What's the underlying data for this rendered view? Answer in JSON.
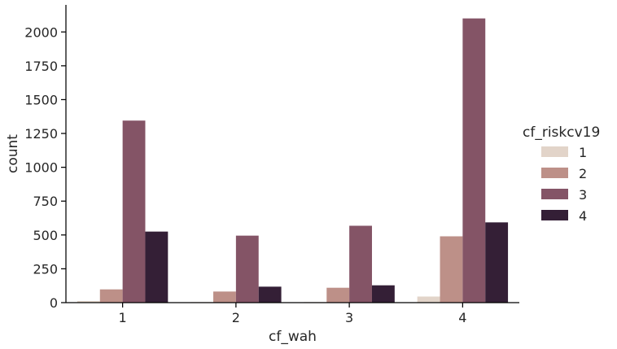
{
  "chart_data": {
    "type": "bar",
    "xlabel": "cf_wah",
    "ylabel": "count",
    "categories": [
      "1",
      "2",
      "3",
      "4"
    ],
    "ylim": [
      0,
      2200
    ],
    "yticks": [
      0,
      250,
      500,
      750,
      1000,
      1250,
      1500,
      1750,
      2000
    ],
    "ytick_labels": [
      "0",
      "250",
      "500",
      "750",
      "1000",
      "1250",
      "1500",
      "1750",
      "2000"
    ],
    "grid": false,
    "legend": {
      "title": "cf_riskcv19",
      "placement": "right"
    },
    "series": [
      {
        "name": "1",
        "color": "#e2d4c9",
        "values": [
          12,
          4,
          4,
          45
        ]
      },
      {
        "name": "2",
        "color": "#bd9088",
        "values": [
          98,
          82,
          110,
          490
        ]
      },
      {
        "name": "3",
        "color": "#845466",
        "values": [
          1345,
          495,
          568,
          2100
        ]
      },
      {
        "name": "4",
        "color": "#341f36",
        "values": [
          525,
          118,
          128,
          593
        ]
      }
    ]
  }
}
